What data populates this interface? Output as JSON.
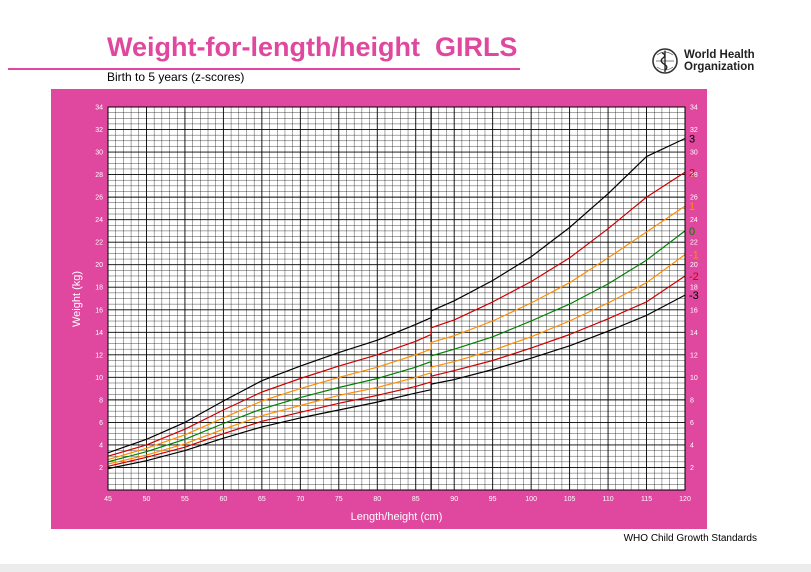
{
  "header": {
    "title": "Weight-for-length/height  GIRLS",
    "subtitle": "Birth to 5 years (z-scores)"
  },
  "logo": {
    "org_line1": "World Health",
    "org_line2": "Organization",
    "icon": "who-emblem-icon"
  },
  "footer": {
    "text": "WHO Child Growth Standards"
  },
  "colors": {
    "brand_pink": "#e0479e",
    "grid_line": "#000000",
    "sd3": "#000000",
    "sd2": "#cc0000",
    "sd1": "#ff8c00",
    "median": "#008000"
  },
  "chart_data": {
    "type": "line",
    "title": "Weight-for-length/height  GIRLS",
    "subtitle": "Birth to 5 years (z-scores)",
    "xlabel": "Length/height (cm)",
    "ylabel": "Weight (kg)",
    "xlim": [
      45,
      120
    ],
    "ylim": [
      0,
      34
    ],
    "grid": true,
    "x_ticks": [
      45,
      50,
      55,
      60,
      65,
      70,
      75,
      80,
      85,
      90,
      95,
      100,
      105,
      110,
      115,
      120
    ],
    "y_ticks": [
      2,
      4,
      6,
      8,
      10,
      12,
      14,
      16,
      18,
      20,
      22,
      24,
      26,
      28,
      30,
      32,
      34
    ],
    "length_height_divider": 87,
    "series": [
      {
        "name": "3",
        "label": "3",
        "color": "#000000",
        "x": [
          45,
          50,
          55,
          60,
          65,
          70,
          75,
          80,
          85,
          87,
          87,
          90,
          95,
          100,
          105,
          110,
          115,
          120
        ],
        "y": [
          3.3,
          4.5,
          6.0,
          7.9,
          9.7,
          11.0,
          12.2,
          13.3,
          14.7,
          15.3,
          15.9,
          16.8,
          18.6,
          20.7,
          23.3,
          26.3,
          29.6,
          31.2
        ]
      },
      {
        "name": "2",
        "label": "2",
        "color": "#cc0000",
        "x": [
          45,
          50,
          55,
          60,
          65,
          70,
          75,
          80,
          85,
          87,
          87,
          90,
          95,
          100,
          105,
          110,
          115,
          120
        ],
        "y": [
          3.0,
          4.0,
          5.4,
          7.1,
          8.7,
          9.9,
          11.0,
          12.0,
          13.2,
          13.8,
          14.4,
          15.1,
          16.7,
          18.5,
          20.6,
          23.2,
          26.0,
          28.2
        ]
      },
      {
        "name": "1",
        "label": "1",
        "color": "#ff8c00",
        "x": [
          45,
          50,
          55,
          60,
          65,
          70,
          75,
          80,
          85,
          87,
          87,
          90,
          95,
          100,
          105,
          110,
          115,
          120
        ],
        "y": [
          2.7,
          3.7,
          4.9,
          6.4,
          7.9,
          9.0,
          10.0,
          10.9,
          12.0,
          12.5,
          13.1,
          13.7,
          15.0,
          16.6,
          18.4,
          20.6,
          22.9,
          25.2
        ]
      },
      {
        "name": "0",
        "label": "0",
        "color": "#008000",
        "x": [
          45,
          50,
          55,
          60,
          65,
          70,
          75,
          80,
          85,
          87,
          87,
          90,
          95,
          100,
          105,
          110,
          115,
          120
        ],
        "y": [
          2.5,
          3.4,
          4.5,
          5.9,
          7.2,
          8.2,
          9.1,
          9.9,
          10.9,
          11.4,
          11.9,
          12.5,
          13.6,
          15.0,
          16.5,
          18.3,
          20.4,
          23.0
        ]
      },
      {
        "name": "-1",
        "label": "-1",
        "color": "#ff8c00",
        "x": [
          45,
          50,
          55,
          60,
          65,
          70,
          75,
          80,
          85,
          87,
          87,
          90,
          95,
          100,
          105,
          110,
          115,
          120
        ],
        "y": [
          2.3,
          3.1,
          4.1,
          5.4,
          6.6,
          7.5,
          8.4,
          9.1,
          10.0,
          10.4,
          10.9,
          11.4,
          12.4,
          13.6,
          15.0,
          16.6,
          18.4,
          20.9
        ]
      },
      {
        "name": "-2",
        "label": "-2",
        "color": "#cc0000",
        "x": [
          45,
          50,
          55,
          60,
          65,
          70,
          75,
          80,
          85,
          87,
          87,
          90,
          95,
          100,
          105,
          110,
          115,
          120
        ],
        "y": [
          2.1,
          2.9,
          3.8,
          5.0,
          6.1,
          6.9,
          7.7,
          8.4,
          9.2,
          9.6,
          10.1,
          10.6,
          11.5,
          12.6,
          13.8,
          15.2,
          16.7,
          19.0
        ]
      },
      {
        "name": "-3",
        "label": "-3",
        "color": "#000000",
        "x": [
          45,
          50,
          55,
          60,
          65,
          70,
          75,
          80,
          85,
          87,
          87,
          90,
          95,
          100,
          105,
          110,
          115,
          120
        ],
        "y": [
          1.9,
          2.6,
          3.5,
          4.6,
          5.6,
          6.4,
          7.1,
          7.8,
          8.6,
          8.9,
          9.4,
          9.8,
          10.7,
          11.7,
          12.8,
          14.1,
          15.5,
          17.3
        ]
      }
    ]
  }
}
